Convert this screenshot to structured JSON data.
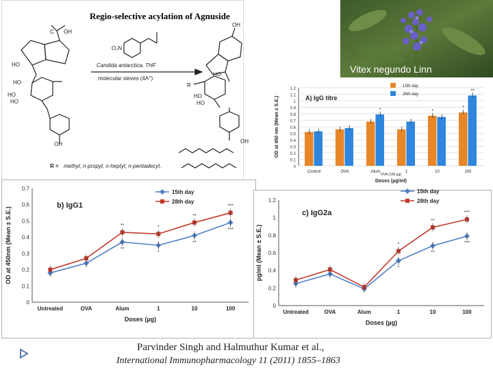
{
  "scheme": {
    "title": "Regio-selective acylation of Agnuside",
    "reagent_line1": "Candida antarctica, THF",
    "reagent_line2": "molecular sieves (4A°)",
    "r_groups_label": "R =",
    "r_groups": "methyl, n-propyl, n-heptyl, n-pentadecyl,"
  },
  "photo": {
    "caption": "Vitex negundo Linn"
  },
  "citation": {
    "authors": "Parvinder Singh and  Halmuthur Kumar  et al.,",
    "journal": "International Immunopharmacology 11 (2011) 1855–1863"
  },
  "colors": {
    "orange": "#E8862A",
    "blue": "#2E86DE",
    "red": "#C0392B",
    "steel": "#4F7FC4"
  },
  "chart_data": [
    {
      "id": "A",
      "type": "bar",
      "title": "A) IgG titre",
      "ylabel": "OD at 450 nm (Mean ± S.E.)",
      "xlabel": "Doses (µg/ml)",
      "sub_xlabel": "OVA (100 µg)",
      "ylim": [
        0,
        1.2
      ],
      "yticks": [
        "0",
        "0.1",
        "0.2",
        "0.3",
        "0.4",
        "0.5",
        "0.6",
        "0.7",
        "0.8",
        "0.9",
        "1",
        "1.1",
        "1.2"
      ],
      "categories": [
        "Control",
        "OVA",
        "Alum",
        "1",
        "10",
        "100"
      ],
      "legend_position": "top-right",
      "series": [
        {
          "name": "15th day",
          "color": "#E8862A",
          "values": [
            0.52,
            0.56,
            0.68,
            0.56,
            0.77,
            0.82
          ],
          "marks": [
            "",
            "",
            "",
            "",
            "*",
            "*"
          ]
        },
        {
          "name": "26th day",
          "color": "#2E86DE",
          "values": [
            0.53,
            0.58,
            0.79,
            0.68,
            0.75,
            1.08
          ],
          "marks": [
            "",
            "",
            "*",
            "",
            "",
            "**"
          ]
        }
      ]
    },
    {
      "id": "B",
      "type": "line",
      "title": "b) IgG1",
      "ylabel": "OD at 450nm (Mean ± S.E.)",
      "xlabel": "Doses (µg)",
      "ylim": [
        0,
        0.7
      ],
      "yticks": [
        "0",
        "0.1",
        "0.2",
        "0.3",
        "0.4",
        "0.5",
        "0.6",
        "0.7"
      ],
      "categories": [
        "Untreated",
        "OVA",
        "Alum",
        "1",
        "10",
        "100"
      ],
      "legend_position": "top-right",
      "series": [
        {
          "name": "15th day",
          "color": "#4F7FC4",
          "marker": "diamond",
          "values": [
            0.18,
            0.24,
            0.37,
            0.35,
            0.41,
            0.49
          ],
          "marks": [
            "",
            "",
            "**",
            "*",
            "**",
            "***"
          ]
        },
        {
          "name": "28th day",
          "color": "#C0392B",
          "marker": "square",
          "values": [
            0.2,
            0.27,
            0.43,
            0.42,
            0.49,
            0.55
          ],
          "marks": [
            "",
            "",
            "**",
            "*",
            "**",
            "***"
          ]
        }
      ]
    },
    {
      "id": "C",
      "type": "line",
      "title": "c) IgG2a",
      "ylabel": "pg/ml (Mean ± S.E.)",
      "xlabel": "Doses (µg)",
      "ylim": [
        0,
        1.2
      ],
      "yticks": [
        "0",
        "0.2",
        "0.4",
        "0.6",
        "0.8",
        "1",
        "1.2"
      ],
      "categories": [
        "Untreated",
        "OVA",
        "Alum",
        "1",
        "10",
        "100"
      ],
      "legend_position": "top-right",
      "series": [
        {
          "name": "15th day",
          "color": "#4F7FC4",
          "marker": "diamond",
          "values": [
            0.25,
            0.36,
            0.19,
            0.51,
            0.68,
            0.79
          ],
          "marks": [
            "",
            "",
            "",
            "*",
            "**",
            "***"
          ]
        },
        {
          "name": "28th day",
          "color": "#C0392B",
          "marker": "square",
          "values": [
            0.29,
            0.41,
            0.21,
            0.62,
            0.89,
            0.98
          ],
          "marks": [
            "",
            "",
            "",
            "*",
            "**",
            "***"
          ]
        }
      ]
    }
  ]
}
